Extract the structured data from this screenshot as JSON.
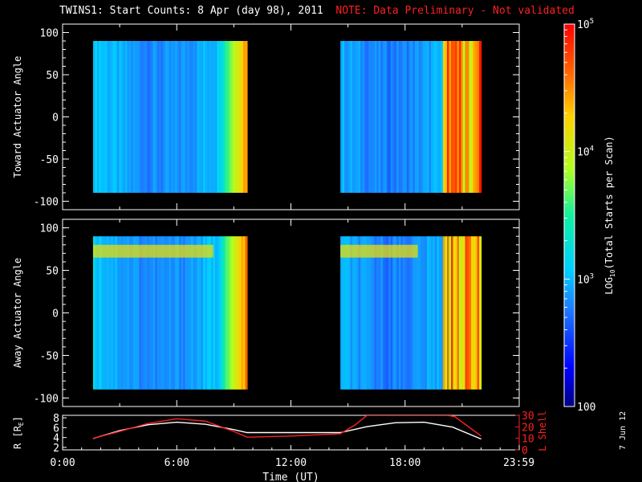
{
  "title": {
    "text": "TWINS1: Start Counts:  8 Apr (day  98), 2011",
    "note": "NOTE: Data Preliminary - Not validated",
    "note_color": "#ff2020"
  },
  "side_date": "7 Jun 12",
  "chart_data": [
    {
      "type": "heatmap",
      "panel": "toward",
      "ylabel": "Toward Actuator Angle",
      "ylim": [
        -110,
        110
      ],
      "yticks": [
        "100",
        "50",
        "0",
        "-50",
        "-100"
      ],
      "ytick_values": [
        100,
        50,
        0,
        -50,
        -100
      ],
      "xlim_hours": [
        0,
        24
      ],
      "data_segments_hours": [
        [
          1.6,
          9.7
        ],
        [
          14.6,
          22.0
        ]
      ],
      "y_extent": [
        -90,
        90
      ],
      "grid": false
    },
    {
      "type": "heatmap",
      "panel": "away",
      "ylabel": "Away Actuator Angle",
      "ylim": [
        -110,
        110
      ],
      "yticks": [
        "100",
        "50",
        "0",
        "-50",
        "-100"
      ],
      "ytick_values": [
        100,
        50,
        0,
        -50,
        -100
      ],
      "xlim_hours": [
        0,
        24
      ],
      "data_segments_hours": [
        [
          1.6,
          9.7
        ],
        [
          14.6,
          22.0
        ]
      ],
      "y_extent": [
        -90,
        90
      ],
      "grid": false
    },
    {
      "type": "line",
      "panel": "orbit",
      "ylabel_left": "R [R",
      "ylabel_left_sub": "E",
      "ylabel_left_end": "]",
      "ylabel_right": "L Shell",
      "yticks_left": [
        "8",
        "6",
        "4",
        "2"
      ],
      "yticks_left_values": [
        8,
        6,
        4,
        2
      ],
      "ylim_left": [
        1.5,
        8.5
      ],
      "yticks_right": [
        "30",
        "20",
        "10",
        "0"
      ],
      "yticks_right_values": [
        30,
        20,
        10,
        0
      ],
      "ylim_right": [
        0,
        30
      ],
      "xlabel": "Time (UT)",
      "xticks": [
        "0:00",
        "6:00",
        "12:00",
        "18:00",
        "23:59"
      ],
      "xtick_hours": [
        0,
        6,
        12,
        18,
        23.98
      ],
      "series": [
        {
          "color": "#ffffff",
          "axis": "left",
          "x": [
            1.6,
            3,
            4.5,
            6,
            7.5,
            9,
            9.7,
            12,
            14.6,
            16,
            17.5,
            19,
            20.5,
            22
          ],
          "values": [
            3.8,
            5.4,
            6.6,
            7.1,
            6.7,
            5.6,
            5.0,
            5.0,
            5.0,
            6.2,
            7.0,
            7.1,
            6.1,
            3.7
          ]
        },
        {
          "color": "#ff2020",
          "axis": "right",
          "x": [
            1.6,
            3,
            4.5,
            6,
            7.5,
            9,
            9.7,
            12,
            14.6,
            15.4,
            16.0,
            20.2,
            20.6,
            22
          ],
          "values": [
            10,
            16,
            23,
            27,
            25,
            16,
            11,
            12,
            14,
            22,
            30,
            30,
            29,
            12
          ]
        }
      ]
    },
    {
      "type": "colorbar",
      "label_pre": "LOG",
      "label_sub": "10",
      "label_post": "(Total Starts per Scan)",
      "scale": "log",
      "range": [
        100,
        100000
      ],
      "tick_labels": [
        {
          "value": 100000,
          "base": "10",
          "exp": "5"
        },
        {
          "value": 10000,
          "base": "10",
          "exp": "4"
        },
        {
          "value": 1000,
          "base": "10",
          "exp": "3"
        },
        {
          "value": 100,
          "base": "100",
          "exp": ""
        }
      ]
    }
  ]
}
